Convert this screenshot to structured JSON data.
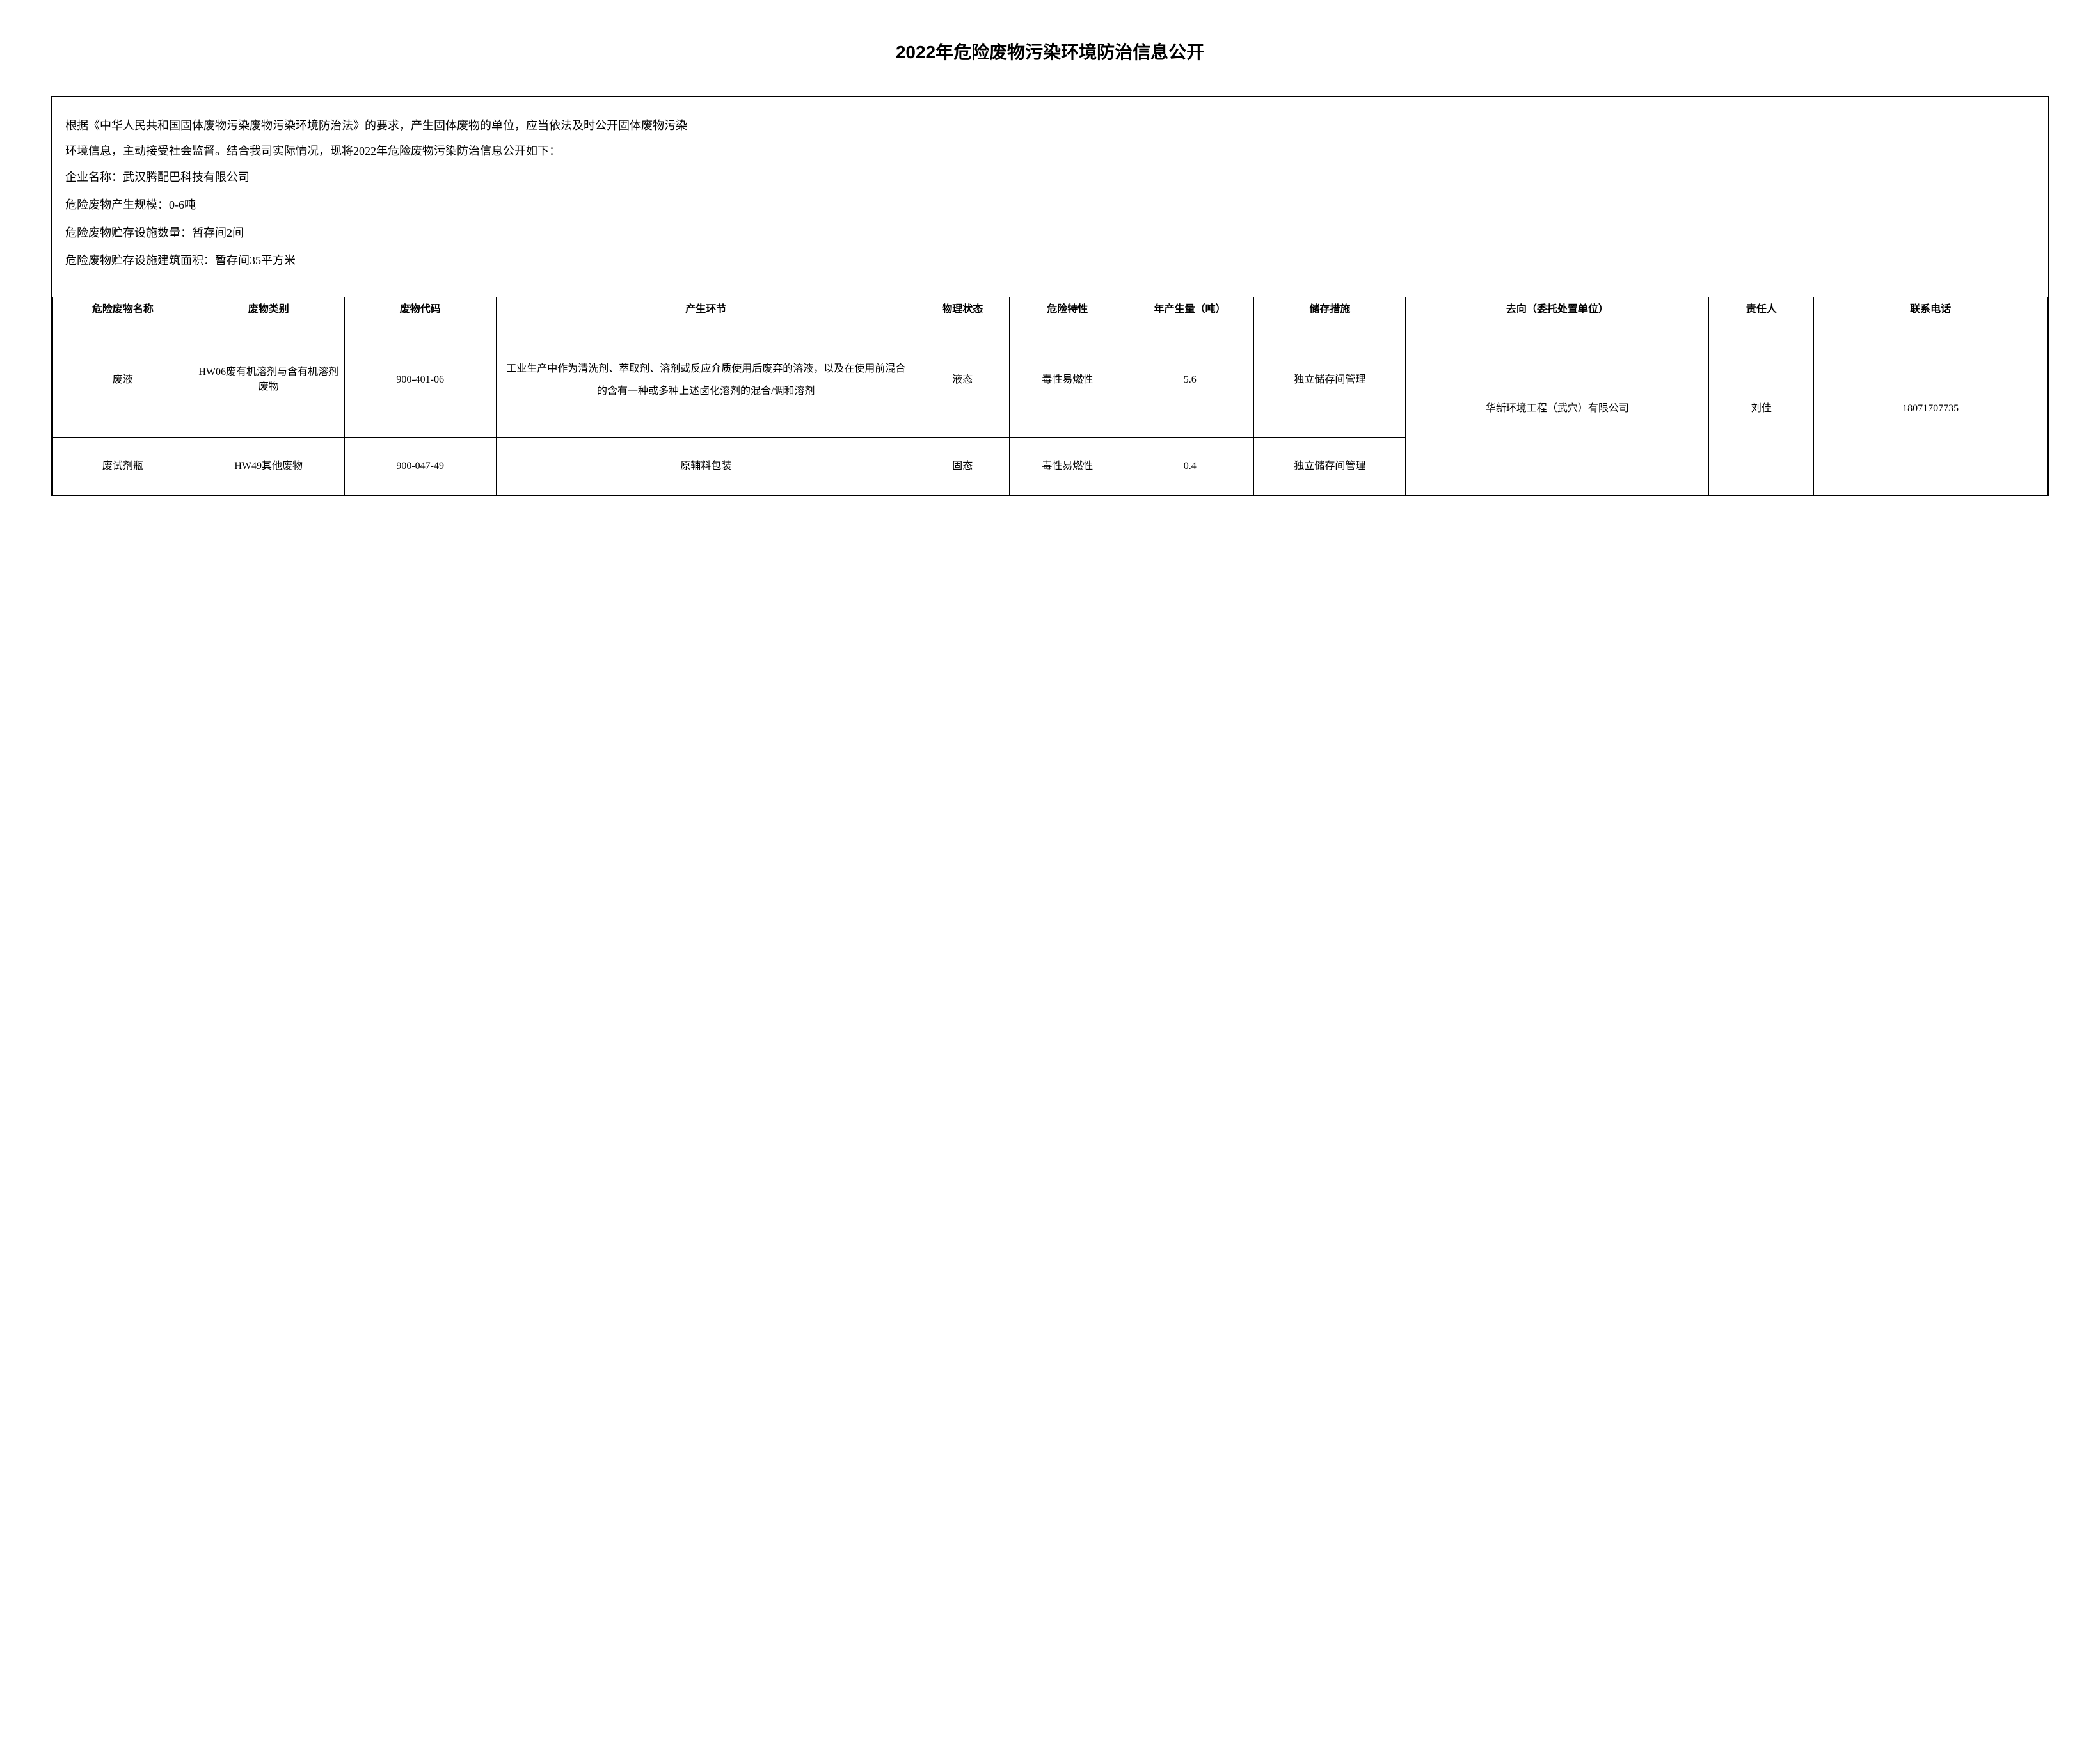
{
  "title": "2022年危险废物污染环境防治信息公开",
  "intro": {
    "line1": "根据《中华人民共和国固体废物污染废物污染环境防治法》的要求，产生固体废物的单位，应当依法及时公开固体废物污染",
    "line2": "环境信息，主动接受社会监督。结合我司实际情况，现将2022年危险废物污染防治信息公开如下："
  },
  "company_info": {
    "name_label": "企业名称：武汉腾配巴科技有限公司",
    "scale_label": "危险废物产生规模：0-6吨",
    "facility_count_label": "危险废物贮存设施数量：暂存间2间",
    "facility_area_label": "危险废物贮存设施建筑面积：暂存间35平方米"
  },
  "table": {
    "headers": {
      "name": "危险废物名称",
      "category": "废物类别",
      "code": "废物代码",
      "process": "产生环节",
      "state": "物理状态",
      "hazard": "危险特性",
      "amount": "年产生量（吨）",
      "storage": "储存措施",
      "destination": "去向（委托处置单位）",
      "person": "责任人",
      "phone": "联系电话"
    },
    "rows": [
      {
        "name": "废液",
        "category": "HW06废有机溶剂与含有机溶剂废物",
        "code": "900-401-06",
        "process": "工业生产中作为清洗剂、萃取剂、溶剂或反应介质使用后废弃的溶液，以及在使用前混合的含有一种或多种上述卤化溶剂的混合/调和溶剂",
        "state": "液态",
        "hazard": "毒性易燃性",
        "amount": "5.6",
        "storage": "独立储存间管理"
      },
      {
        "name": "废试剂瓶",
        "category": "HW49其他废物",
        "code": "900-047-49",
        "process": "原辅料包装",
        "state": "固态",
        "hazard": "毒性易燃性",
        "amount": "0.4",
        "storage": "独立储存间管理"
      }
    ],
    "shared": {
      "destination": "华新环境工程（武穴）有限公司",
      "person": "刘佳",
      "phone": "18071707735"
    }
  },
  "colors": {
    "text": "#000000",
    "background": "#ffffff",
    "border": "#000000"
  },
  "typography": {
    "title_fontsize": 28,
    "body_fontsize": 18,
    "table_fontsize": 16
  }
}
